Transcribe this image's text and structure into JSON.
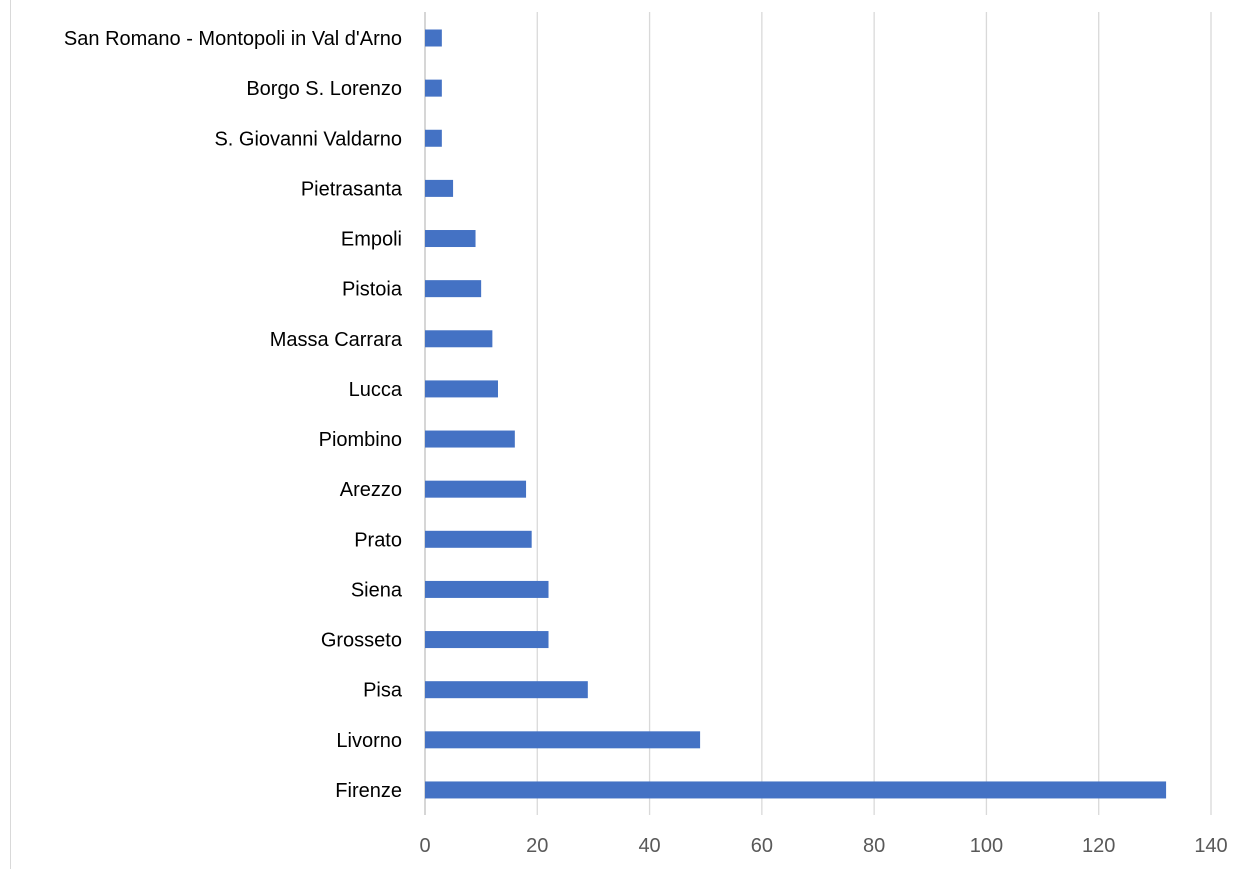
{
  "chart_data": {
    "type": "bar",
    "orientation": "horizontal",
    "categories": [
      "San Romano - Montopoli in Val d'Arno",
      "Borgo S. Lorenzo",
      "S. Giovanni Valdarno",
      "Pietrasanta",
      "Empoli",
      "Pistoia",
      "Massa Carrara",
      "Lucca",
      "Piombino",
      "Arezzo",
      "Prato",
      "Siena",
      "Grosseto",
      "Pisa",
      "Livorno",
      "Firenze"
    ],
    "values": [
      3,
      3,
      3,
      5,
      9,
      10,
      12,
      13,
      16,
      18,
      19,
      22,
      22,
      29,
      49,
      132
    ],
    "xlim": [
      0,
      140
    ],
    "xticks": [
      "0",
      "20",
      "40",
      "60",
      "80",
      "100",
      "120",
      "140"
    ],
    "title": "",
    "xlabel": "",
    "ylabel": "",
    "grid": "vertical",
    "legend": "none",
    "bar_color": "#4472c4",
    "grid_color": "#d9d9d9",
    "axis_color": "#bfbfbf"
  }
}
